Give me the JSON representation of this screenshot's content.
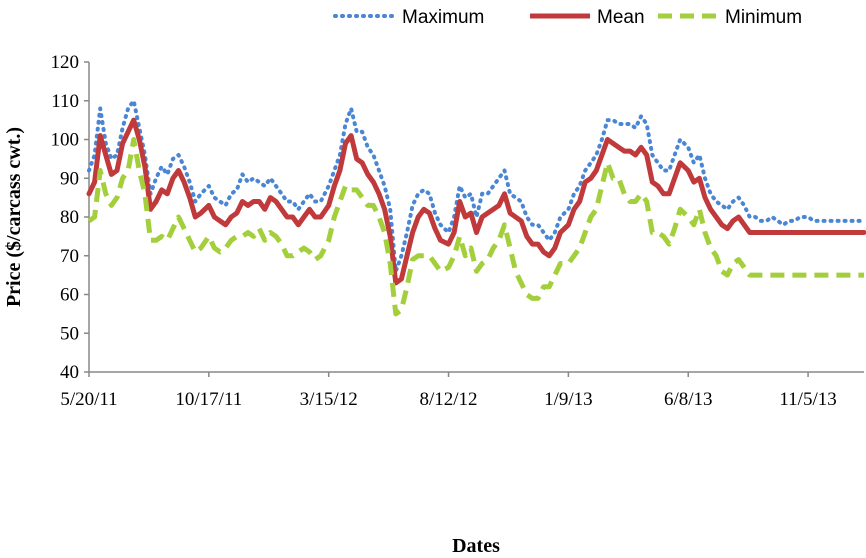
{
  "chart_data": {
    "type": "line",
    "xlabel": "Dates",
    "ylabel": "Price ($/carcass cwt.)",
    "ylim": [
      40,
      120
    ],
    "yticks": [
      40,
      50,
      60,
      70,
      80,
      90,
      100,
      110,
      120
    ],
    "xlim": [
      "2011-05-20",
      "2014-01-14"
    ],
    "xticks": [
      {
        "label": "5/20/11",
        "date": "2011-05-20"
      },
      {
        "label": "10/17/11",
        "date": "2011-10-17"
      },
      {
        "label": "3/15/12",
        "date": "2012-03-15"
      },
      {
        "label": "8/12/12",
        "date": "2012-08-12"
      },
      {
        "label": "1/9/13",
        "date": "2013-01-09"
      },
      {
        "label": "6/8/13",
        "date": "2013-06-08"
      },
      {
        "label": "11/5/13",
        "date": "2013-11-05"
      }
    ],
    "grid": false,
    "legend_position": "top",
    "x": [
      "2011-05-20",
      "2011-05-27",
      "2011-06-03",
      "2011-06-10",
      "2011-06-17",
      "2011-06-24",
      "2011-07-01",
      "2011-07-08",
      "2011-07-15",
      "2011-07-22",
      "2011-07-29",
      "2011-08-05",
      "2011-08-12",
      "2011-08-19",
      "2011-08-26",
      "2011-09-02",
      "2011-09-09",
      "2011-09-16",
      "2011-09-23",
      "2011-09-30",
      "2011-10-07",
      "2011-10-17",
      "2011-10-24",
      "2011-10-31",
      "2011-11-07",
      "2011-11-14",
      "2011-11-21",
      "2011-11-28",
      "2011-12-05",
      "2011-12-12",
      "2011-12-19",
      "2011-12-26",
      "2012-01-02",
      "2012-01-09",
      "2012-01-16",
      "2012-01-23",
      "2012-01-30",
      "2012-02-06",
      "2012-02-13",
      "2012-02-20",
      "2012-02-27",
      "2012-03-05",
      "2012-03-15",
      "2012-03-22",
      "2012-03-29",
      "2012-04-05",
      "2012-04-12",
      "2012-04-19",
      "2012-04-26",
      "2012-05-03",
      "2012-05-10",
      "2012-05-17",
      "2012-05-24",
      "2012-05-31",
      "2012-06-07",
      "2012-06-14",
      "2012-06-21",
      "2012-06-28",
      "2012-07-05",
      "2012-07-12",
      "2012-07-19",
      "2012-07-26",
      "2012-08-02",
      "2012-08-12",
      "2012-08-19",
      "2012-08-26",
      "2012-09-02",
      "2012-09-09",
      "2012-09-16",
      "2012-09-23",
      "2012-09-30",
      "2012-10-07",
      "2012-10-14",
      "2012-10-21",
      "2012-10-28",
      "2012-11-04",
      "2012-11-11",
      "2012-11-18",
      "2012-11-25",
      "2012-12-02",
      "2012-12-09",
      "2012-12-16",
      "2012-12-23",
      "2012-12-30",
      "2013-01-09",
      "2013-01-16",
      "2013-01-23",
      "2013-01-30",
      "2013-02-06",
      "2013-02-13",
      "2013-02-20",
      "2013-02-27",
      "2013-03-06",
      "2013-03-13",
      "2013-03-20",
      "2013-03-27",
      "2013-04-03",
      "2013-04-10",
      "2013-04-17",
      "2013-04-24",
      "2013-05-01",
      "2013-05-08",
      "2013-05-15",
      "2013-05-22",
      "2013-05-29",
      "2013-06-08",
      "2013-06-15",
      "2013-06-22",
      "2013-06-29",
      "2013-07-06",
      "2013-07-13",
      "2013-07-20",
      "2013-07-27",
      "2013-08-03",
      "2013-08-10",
      "2013-08-17",
      "2013-08-24",
      "2013-08-31",
      "2013-09-07",
      "2013-09-14",
      "2013-09-21",
      "2013-09-28",
      "2013-10-05",
      "2013-10-12",
      "2013-10-19",
      "2013-10-26",
      "2013-11-05",
      "2013-11-12",
      "2013-11-19",
      "2013-11-26",
      "2013-12-03",
      "2013-12-10",
      "2013-12-17",
      "2013-12-24",
      "2013-12-31",
      "2014-01-07",
      "2014-01-14"
    ],
    "series": [
      {
        "name": "Maximum",
        "style": "dotted",
        "color": "#4a86d4",
        "values": [
          92,
          96,
          108,
          99,
          95,
          96,
          103,
          108,
          110,
          103,
          96,
          86,
          90,
          93,
          91,
          95,
          96,
          93,
          89,
          84,
          86,
          88,
          85,
          84,
          83,
          86,
          87,
          91,
          89,
          90,
          89,
          88,
          90,
          88,
          86,
          84,
          84,
          82,
          84,
          86,
          84,
          84,
          88,
          92,
          96,
          104,
          108,
          102,
          102,
          98,
          96,
          92,
          88,
          82,
          66,
          70,
          76,
          83,
          86,
          87,
          86,
          81,
          78,
          76,
          80,
          88,
          85,
          86,
          80,
          86,
          86,
          88,
          90,
          92,
          86,
          85,
          84,
          80,
          78,
          78,
          76,
          74,
          76,
          80,
          82,
          86,
          88,
          92,
          94,
          96,
          100,
          105,
          105,
          104,
          104,
          104,
          103,
          106,
          104,
          96,
          94,
          92,
          92,
          96,
          100,
          98,
          94,
          96,
          90,
          86,
          84,
          83,
          82,
          84,
          85,
          83,
          80,
          80,
          79,
          79,
          80,
          79,
          78,
          79,
          79,
          80,
          80,
          79,
          79,
          79,
          79,
          79,
          79,
          79,
          79,
          79,
          79
        ]
      },
      {
        "name": "Mean",
        "style": "solid",
        "color": "#c0393b",
        "values": [
          86,
          89,
          101,
          96,
          91,
          92,
          99,
          102,
          105,
          100,
          93,
          82,
          84,
          87,
          86,
          90,
          92,
          89,
          85,
          80,
          81,
          83,
          80,
          79,
          78,
          80,
          81,
          84,
          83,
          84,
          84,
          82,
          85,
          84,
          82,
          80,
          80,
          78,
          80,
          82,
          80,
          80,
          83,
          88,
          92,
          99,
          101,
          95,
          94,
          91,
          89,
          86,
          82,
          75,
          63,
          64,
          70,
          76,
          80,
          82,
          81,
          77,
          74,
          73,
          76,
          84,
          80,
          81,
          76,
          80,
          81,
          82,
          83,
          86,
          81,
          80,
          79,
          75,
          73,
          73,
          71,
          70,
          72,
          76,
          78,
          82,
          84,
          89,
          90,
          92,
          96,
          100,
          99,
          98,
          97,
          97,
          96,
          98,
          96,
          89,
          88,
          86,
          86,
          90,
          94,
          92,
          89,
          90,
          85,
          82,
          80,
          78,
          77,
          79,
          80,
          78,
          76,
          76,
          76,
          76,
          76,
          76,
          76,
          76,
          76,
          76,
          76,
          76,
          76,
          76,
          76,
          76,
          76,
          76,
          76,
          76,
          76
        ]
      },
      {
        "name": "Minimum",
        "style": "dashed",
        "color": "#a4cf3c",
        "values": [
          79,
          80,
          92,
          86,
          83,
          85,
          90,
          92,
          100,
          92,
          86,
          74,
          74,
          75,
          74,
          77,
          80,
          77,
          74,
          71,
          72,
          75,
          72,
          71,
          72,
          74,
          75,
          75,
          76,
          75,
          77,
          74,
          76,
          75,
          73,
          70,
          70,
          71,
          72,
          71,
          69,
          70,
          74,
          80,
          84,
          88,
          87,
          87,
          85,
          83,
          83,
          80,
          76,
          68,
          55,
          56,
          62,
          69,
          70,
          70,
          70,
          68,
          66,
          67,
          70,
          75,
          70,
          72,
          66,
          68,
          69,
          72,
          74,
          78,
          72,
          66,
          63,
          60,
          59,
          59,
          62,
          62,
          65,
          68,
          68,
          70,
          72,
          76,
          80,
          82,
          88,
          94,
          90,
          90,
          86,
          84,
          84,
          86,
          84,
          76,
          76,
          75,
          73,
          77,
          82,
          80,
          78,
          82,
          76,
          72,
          70,
          66,
          65,
          68,
          69,
          67,
          65,
          65,
          65,
          65,
          65,
          65,
          65,
          65,
          65,
          65,
          65,
          65,
          65,
          65,
          65,
          65,
          65,
          65,
          65,
          65,
          65
        ]
      }
    ]
  }
}
